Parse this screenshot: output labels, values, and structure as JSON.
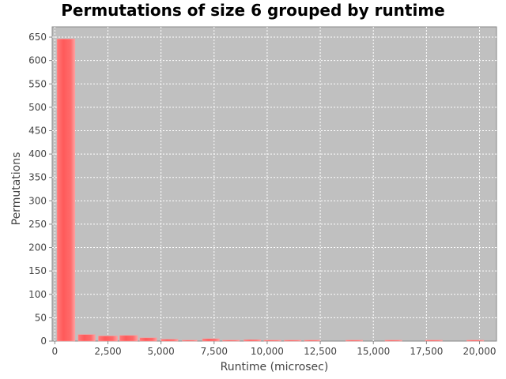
{
  "chart_data": {
    "type": "bar",
    "title": "Permutations of size 6 grouped by runtime",
    "xlabel": "Runtime (microsec)",
    "ylabel": "Permutations",
    "xlim": [
      -125,
      20800
    ],
    "ylim": [
      0,
      672
    ],
    "x_ticks": [
      "0",
      "2,500",
      "5,000",
      "7,500",
      "10,000",
      "12,500",
      "15,000",
      "17,500",
      "20,000"
    ],
    "x_tick_values": [
      0,
      2500,
      5000,
      7500,
      10000,
      12500,
      15000,
      17500,
      20000
    ],
    "y_ticks": [
      "0",
      "50",
      "100",
      "150",
      "200",
      "250",
      "300",
      "350",
      "400",
      "450",
      "500",
      "550",
      "600",
      "650"
    ],
    "y_tick_values": [
      0,
      50,
      100,
      150,
      200,
      250,
      300,
      350,
      400,
      450,
      500,
      550,
      600,
      650
    ],
    "grid": true,
    "bar_color": "#ff5555",
    "plot_background": "#c0c0c0",
    "series": [
      {
        "bins": [
          {
            "x0": 100,
            "x1": 950,
            "value": 646
          },
          {
            "x0": 1100,
            "x1": 1900,
            "value": 14
          },
          {
            "x0": 2050,
            "x1": 2950,
            "value": 11
          },
          {
            "x0": 3050,
            "x1": 3900,
            "value": 12
          },
          {
            "x0": 4000,
            "x1": 4800,
            "value": 7
          },
          {
            "x0": 5000,
            "x1": 5800,
            "value": 4
          },
          {
            "x0": 6000,
            "x1": 6700,
            "value": 1
          },
          {
            "x0": 6950,
            "x1": 7750,
            "value": 5
          },
          {
            "x0": 7900,
            "x1": 8700,
            "value": 2
          },
          {
            "x0": 8900,
            "x1": 9700,
            "value": 3
          },
          {
            "x0": 9850,
            "x1": 10650,
            "value": 1
          },
          {
            "x0": 10800,
            "x1": 11600,
            "value": 1
          },
          {
            "x0": 11750,
            "x1": 12500,
            "value": 1
          },
          {
            "x0": 13700,
            "x1": 14500,
            "value": 1
          },
          {
            "x0": 15550,
            "x1": 16350,
            "value": 1
          },
          {
            "x0": 17450,
            "x1": 18250,
            "value": 1
          },
          {
            "x0": 19400,
            "x1": 20200,
            "value": 1
          }
        ]
      }
    ]
  }
}
